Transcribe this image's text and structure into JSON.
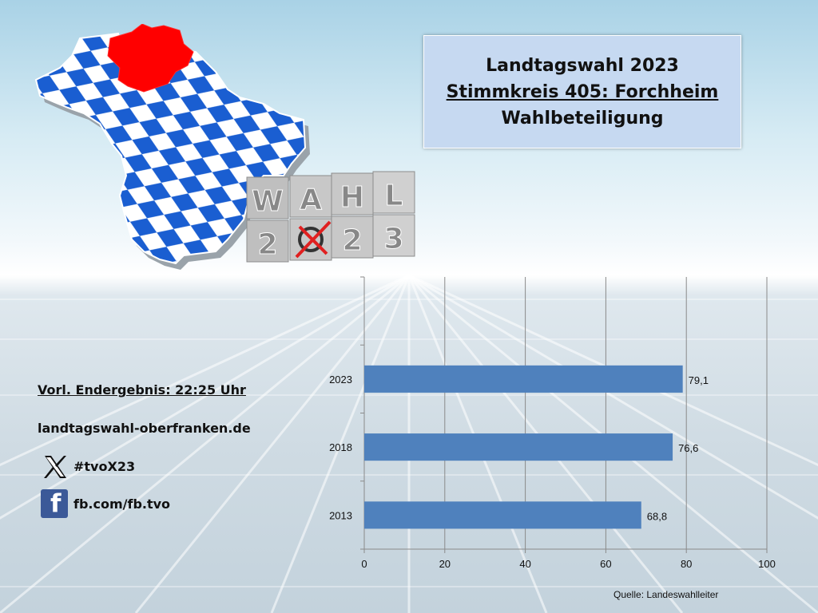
{
  "header": {
    "title_line1": "Landtagswahl 2023",
    "title_line2": "Stimmkreis 405: Forchheim",
    "title_line3": "Wahlbeteiligung"
  },
  "badge": {
    "top_letters": [
      "W",
      "A",
      "H",
      "L"
    ],
    "bottom_digits": [
      "2",
      "",
      "2",
      "3"
    ]
  },
  "info": {
    "result_time": "Vorl. Endergebnis: 22:25 Uhr",
    "website": "landtagswahl-oberfranken.de",
    "x_handle": "#tvoX23",
    "facebook": "fb.com/fb.tvo"
  },
  "icons": {
    "x": "x-logo-icon",
    "facebook": "facebook-logo-icon"
  },
  "colors": {
    "bar": "#4f81bd",
    "title_box": "#c6d9f1",
    "highlight_region": "#ff0000",
    "map_blue": "#1a5ed1"
  },
  "chart_data": {
    "type": "bar",
    "orientation": "horizontal",
    "categories": [
      "2013",
      "2018",
      "2023"
    ],
    "values": [
      68.8,
      76.6,
      79.1
    ],
    "value_labels": [
      "68,8",
      "76,6",
      "79,1"
    ],
    "xlim": [
      0,
      100
    ],
    "x_ticks": [
      0,
      20,
      40,
      60,
      80,
      100
    ],
    "grid": true,
    "title": "",
    "xlabel": "",
    "ylabel": ""
  },
  "source": "Quelle: Landeswahlleiter"
}
